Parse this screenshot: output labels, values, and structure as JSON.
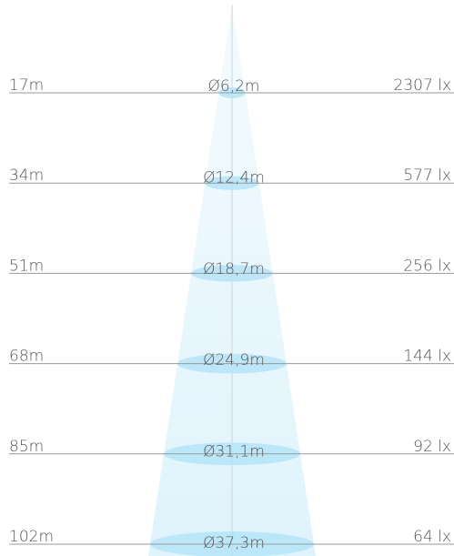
{
  "rows": [
    {
      "distance": "17m",
      "diameter": "Ø6,2m",
      "illuminance": "2307 lx"
    },
    {
      "distance": "34m",
      "diameter": "Ø12,4m",
      "illuminance": "577 lx"
    },
    {
      "distance": "51m",
      "diameter": "Ø18,7m",
      "illuminance": "256 lx"
    },
    {
      "distance": "68m",
      "diameter": "Ø24,9m",
      "illuminance": "144 lx"
    },
    {
      "distance": "85m",
      "diameter": "Ø31,1m",
      "illuminance": "92 lx"
    },
    {
      "distance": "102m",
      "diameter": "Ø37,3m",
      "illuminance": "64 lx"
    }
  ]
}
